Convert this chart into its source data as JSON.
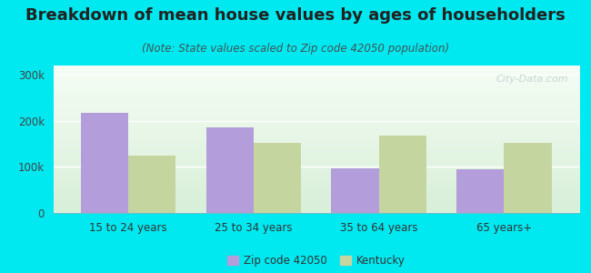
{
  "title": "Breakdown of mean house values by ages of householders",
  "subtitle": "(Note: State values scaled to Zip code 42050 population)",
  "categories": [
    "15 to 24 years",
    "25 to 34 years",
    "35 to 64 years",
    "65 years+"
  ],
  "zip_values": [
    218000,
    185000,
    97000,
    95000
  ],
  "state_values": [
    125000,
    152000,
    168000,
    152000
  ],
  "zip_color": "#b39ddb",
  "state_color": "#c5d5a0",
  "background_outer": "#00e8f0",
  "background_inner_top": "#f5fdf5",
  "background_inner_bottom": "#d8efd8",
  "ylim": [
    0,
    320000
  ],
  "yticks": [
    0,
    100000,
    200000,
    300000
  ],
  "ytick_labels": [
    "0",
    "100k",
    "200k",
    "300k"
  ],
  "legend_zip_label": "Zip code 42050",
  "legend_state_label": "Kentucky",
  "bar_width": 0.38,
  "title_fontsize": 13,
  "subtitle_fontsize": 8.5,
  "watermark": "City-Data.com"
}
